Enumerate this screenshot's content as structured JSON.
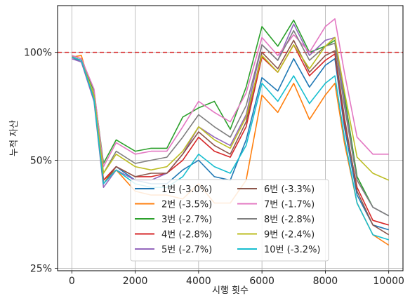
{
  "chart_data": {
    "type": "line",
    "xlabel": "시행 횟수",
    "ylabel": "누적 자산",
    "x_ticks": [
      0,
      2000,
      4000,
      6000,
      8000,
      10000
    ],
    "x_tick_labels": [
      "0",
      "2000",
      "4000",
      "6000",
      "8000",
      "10000"
    ],
    "xlim": [
      -450,
      10450
    ],
    "y_scale": "log",
    "y_ticks": [
      25,
      50,
      100
    ],
    "y_tick_labels": [
      "25%",
      "50%",
      "100%"
    ],
    "ylim": [
      24.6,
      135
    ],
    "grid": true,
    "reference_line": {
      "y": 100,
      "color": "#d62728",
      "style": "dashed"
    },
    "legend_placement": "lower-center",
    "series": [
      {
        "name": "1번 (-3.0%)",
        "color": "#1f77b4",
        "x": [
          0,
          300,
          700,
          1000,
          1400,
          2000,
          2500,
          3000,
          3500,
          4000,
          4500,
          5000,
          5500,
          6000,
          6500,
          7000,
          7500,
          8000,
          8300,
          8600,
          9000,
          9500,
          10000
        ],
        "y": [
          97,
          94,
          75,
          44,
          48,
          44,
          43,
          43,
          47,
          50,
          45,
          44,
          57,
          85,
          78,
          96,
          80,
          92,
          96,
          62,
          40,
          33,
          32
        ]
      },
      {
        "name": "2번 (-3.5%)",
        "color": "#ff7f0e",
        "x": [
          0,
          300,
          700,
          1000,
          1400,
          2000,
          2500,
          3000,
          3500,
          4000,
          4500,
          5000,
          5500,
          6000,
          6500,
          7000,
          7500,
          8000,
          8300,
          8600,
          9000,
          9500,
          10000
        ],
        "y": [
          97,
          98,
          74,
          44,
          47,
          41,
          40,
          40,
          39,
          43,
          38,
          38,
          44,
          76,
          68,
          82,
          65,
          76,
          82,
          56,
          38,
          31,
          29
        ]
      },
      {
        "name": "3번 (-2.7%)",
        "color": "#2ca02c",
        "x": [
          0,
          300,
          700,
          1000,
          1400,
          2000,
          2500,
          3000,
          3500,
          4000,
          4500,
          5000,
          5500,
          6000,
          6500,
          7000,
          7500,
          8000,
          8300,
          8600,
          9000,
          9500,
          10000
        ],
        "y": [
          98,
          96,
          78,
          49,
          57,
          53,
          54,
          54,
          66,
          70,
          73,
          61,
          80,
          118,
          104,
          123,
          100,
          104,
          108,
          76,
          45,
          37,
          35
        ]
      },
      {
        "name": "4번 (-2.8%)",
        "color": "#d62728",
        "x": [
          0,
          300,
          700,
          1000,
          1400,
          2000,
          2500,
          3000,
          3500,
          4000,
          4500,
          5000,
          5500,
          6000,
          6500,
          7000,
          7500,
          8000,
          8300,
          8600,
          9000,
          9500,
          10000
        ],
        "y": [
          97,
          95,
          75,
          44,
          48,
          45,
          45,
          46,
          50,
          58,
          53,
          51,
          62,
          97,
          88,
          105,
          86,
          95,
          99,
          64,
          42,
          34,
          33
        ]
      },
      {
        "name": "5번 (-2.7%)",
        "color": "#9467bd",
        "x": [
          0,
          300,
          700,
          1000,
          1400,
          2000,
          2500,
          3000,
          3500,
          4000,
          4500,
          5000,
          5500,
          6000,
          6500,
          7000,
          7500,
          8000,
          8300,
          8600,
          9000,
          9500,
          10000
        ],
        "y": [
          96,
          94,
          73,
          42,
          47,
          44,
          44,
          46,
          52,
          62,
          58,
          55,
          67,
          105,
          95,
          120,
          98,
          108,
          110,
          73,
          44,
          37,
          35
        ]
      },
      {
        "name": "6번 (-3.3%)",
        "color": "#8c564b",
        "x": [
          0,
          300,
          700,
          1000,
          1400,
          2000,
          2500,
          3000,
          3500,
          4000,
          4500,
          5000,
          5500,
          6000,
          6500,
          7000,
          7500,
          8000,
          8300,
          8600,
          9000,
          9500,
          10000
        ],
        "y": [
          97,
          95,
          74,
          43,
          48,
          45,
          46,
          46,
          52,
          60,
          55,
          52,
          64,
          100,
          90,
          108,
          88,
          98,
          101,
          66,
          41,
          33,
          31
        ]
      },
      {
        "name": "7번 (-1.7%)",
        "color": "#e377c2",
        "x": [
          0,
          300,
          700,
          1000,
          1400,
          2000,
          2500,
          3000,
          3500,
          4000,
          4500,
          5000,
          5500,
          6000,
          6500,
          7000,
          7500,
          8000,
          8300,
          8600,
          9000,
          9500,
          10000
        ],
        "y": [
          98,
          96,
          79,
          48,
          56,
          52,
          53,
          53,
          62,
          73,
          68,
          64,
          77,
          110,
          98,
          112,
          100,
          118,
          124,
          88,
          58,
          52,
          52
        ]
      },
      {
        "name": "8번 (-2.8%)",
        "color": "#7f7f7f",
        "x": [
          0,
          300,
          700,
          1000,
          1400,
          2000,
          2500,
          3000,
          3500,
          4000,
          4500,
          5000,
          5500,
          6000,
          6500,
          7000,
          7500,
          8000,
          8300,
          8600,
          9000,
          9500,
          10000
        ],
        "y": [
          97,
          95,
          76,
          46,
          53,
          49,
          50,
          51,
          58,
          67,
          62,
          58,
          71,
          105,
          95,
          115,
          95,
          104,
          106,
          71,
          44,
          37,
          35
        ]
      },
      {
        "name": "9번 (-2.4%)",
        "color": "#bcbd22",
        "x": [
          0,
          300,
          700,
          1000,
          1400,
          2000,
          2500,
          3000,
          3500,
          4000,
          4500,
          5000,
          5500,
          6000,
          6500,
          7000,
          7500,
          8000,
          8300,
          8600,
          9000,
          9500,
          10000
        ],
        "y": [
          97,
          95,
          76,
          46,
          52,
          48,
          47,
          48,
          53,
          62,
          57,
          54,
          66,
          98,
          88,
          105,
          90,
          104,
          110,
          78,
          51,
          46,
          44
        ]
      },
      {
        "name": "10번 (-3.2%)",
        "color": "#17becf",
        "x": [
          0,
          300,
          700,
          1000,
          1400,
          2000,
          2500,
          3000,
          3500,
          4000,
          4500,
          5000,
          5500,
          6000,
          6500,
          7000,
          7500,
          8000,
          8300,
          8600,
          9000,
          9500,
          10000
        ],
        "y": [
          97,
          95,
          74,
          43,
          47,
          43,
          42,
          42,
          45,
          52,
          48,
          46,
          55,
          82,
          73,
          86,
          72,
          82,
          86,
          58,
          38,
          31,
          30
        ]
      }
    ]
  }
}
